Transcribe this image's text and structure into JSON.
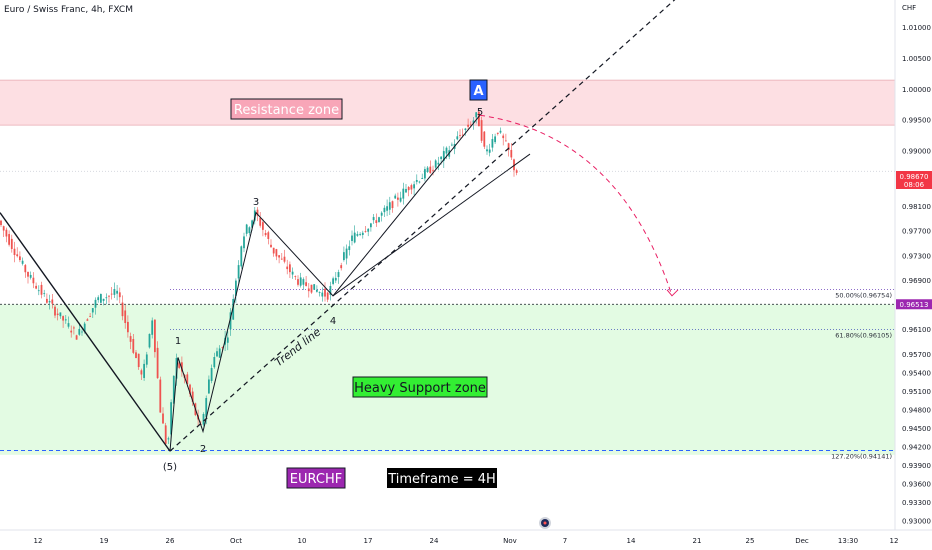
{
  "chart_data": {
    "type": "candlestick",
    "title": "Euro / Swiss Franc, 4h, FXCM",
    "currency": "CHF",
    "y_range": [
      0.9285,
      1.0145
    ],
    "y_ticks": [
      "1.01000",
      "1.00500",
      "1.00000",
      "0.99500",
      "0.99000",
      "0.98100",
      "0.97700",
      "0.97300",
      "0.96900",
      "0.96100",
      "0.95700",
      "0.95400",
      "0.95100",
      "0.94800",
      "0.94500",
      "0.94200",
      "0.93900",
      "0.93600",
      "0.93300",
      "0.93000"
    ],
    "x_ticks": [
      "12",
      "19",
      "26",
      "Oct",
      "10",
      "17",
      "24",
      "Nov",
      "7",
      "14",
      "21",
      "25",
      "Dec",
      "13:30",
      "12"
    ],
    "last_price": "0.98670",
    "countdown": "08:06",
    "marked_price": "0.96513",
    "zones": {
      "resistance": {
        "label": "Resistance zone",
        "from": 0.9942,
        "to": 1.0015,
        "color": "#fddfe3"
      },
      "support": {
        "label": "Heavy Support zone",
        "from": 0.9407,
        "to": 0.9651,
        "color": "#e3fbe3"
      }
    },
    "fib_levels": [
      {
        "label": "50.00%(0.96754)",
        "value": 0.96754
      },
      {
        "label": "61.80%(0.96105)",
        "value": 0.96105
      },
      {
        "label": "127.20%(0.94141)",
        "value": 0.94141
      }
    ],
    "wave_labels": [
      "(5)",
      "1",
      "2",
      "3",
      "4",
      "5"
    ],
    "points": [
      {
        "label": "(5)",
        "x": "Sep 26",
        "price": 0.9413
      },
      {
        "label": "1",
        "x": "Sep 27",
        "price": 0.9565
      },
      {
        "label": "2",
        "x": "Sep 29",
        "price": 0.9445
      },
      {
        "label": "3",
        "x": "Oct 4",
        "price": 0.98
      },
      {
        "label": "4",
        "x": "Oct 13",
        "price": 0.9665
      },
      {
        "label": "5",
        "x": "Oct 28",
        "price": 0.9958
      }
    ],
    "projection_target": 0.9665,
    "annotations": {
      "trend_line": "Trend line",
      "marker": "A",
      "symbol": "EURCHF",
      "timeframe": "Timeframe = 4H"
    },
    "colors": {
      "up": "#26a69a",
      "down": "#ef5350",
      "accent": "#e91e63",
      "marker": "#2962ff",
      "symbol_bg": "#9c27b0"
    }
  }
}
